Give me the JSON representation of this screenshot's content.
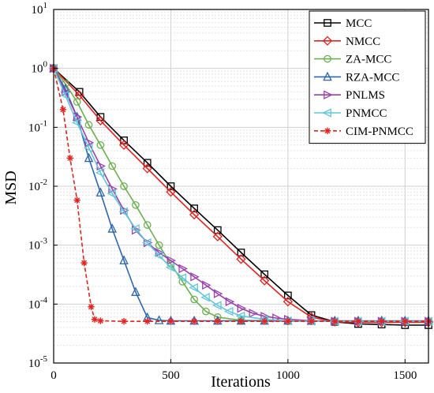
{
  "chart_data": {
    "type": "line",
    "xlabel": "Iterations",
    "ylabel": "MSD",
    "xlim": [
      0,
      1600
    ],
    "ylim": [
      1e-05,
      10
    ],
    "yscale": "log",
    "grid": true,
    "legend_position": "top-right",
    "x_ticks": [
      "0",
      "500",
      "1000",
      "1500"
    ],
    "y_ticks": [
      {
        "base": "10",
        "exp": "1"
      },
      {
        "base": "10",
        "exp": "0"
      },
      {
        "base": "10",
        "exp": "-1"
      },
      {
        "base": "10",
        "exp": "-2"
      },
      {
        "base": "10",
        "exp": "-3"
      },
      {
        "base": "10",
        "exp": "-4"
      },
      {
        "base": "10",
        "exp": "-5"
      }
    ],
    "series": [
      {
        "name": "MCC",
        "color": "#000000",
        "marker": "square",
        "dash": false,
        "x": [
          0,
          110,
          200,
          300,
          400,
          500,
          600,
          700,
          800,
          900,
          1000,
          1100,
          1200,
          1300,
          1400,
          1500,
          1600
        ],
        "y": [
          1.0,
          0.4,
          0.15,
          0.06,
          0.025,
          0.01,
          0.0042,
          0.0018,
          0.00075,
          0.00032,
          0.00014,
          6.5e-05,
          5e-05,
          4.6e-05,
          4.5e-05,
          4.4e-05,
          4.4e-05
        ]
      },
      {
        "name": "NMCC",
        "color": "#e8201e",
        "marker": "diamond",
        "dash": false,
        "x": [
          0,
          110,
          200,
          300,
          400,
          500,
          600,
          700,
          800,
          900,
          1000,
          1100,
          1200,
          1300,
          1400,
          1500,
          1600
        ],
        "y": [
          1.0,
          0.35,
          0.13,
          0.05,
          0.02,
          0.008,
          0.0033,
          0.0014,
          0.00058,
          0.00025,
          0.00011,
          6e-05,
          5e-05,
          4.9e-05,
          4.9e-05,
          4.9e-05,
          4.9e-05
        ]
      },
      {
        "name": "ZA-MCC",
        "color": "#6ab04c",
        "marker": "circle",
        "dash": false,
        "x": [
          0,
          50,
          100,
          150,
          200,
          250,
          300,
          350,
          400,
          450,
          500,
          550,
          600,
          650,
          700,
          800,
          900,
          1000,
          1100,
          1200,
          1300,
          1400,
          1500,
          1600
        ],
        "y": [
          1.0,
          0.55,
          0.27,
          0.11,
          0.05,
          0.022,
          0.01,
          0.0048,
          0.0022,
          0.001,
          0.00048,
          0.00024,
          0.00012,
          7.5e-05,
          6e-05,
          5.3e-05,
          5.2e-05,
          5.1e-05,
          5.1e-05,
          5.1e-05,
          5.1e-05,
          5.1e-05,
          5.1e-05,
          5.1e-05
        ]
      },
      {
        "name": "RZA-MCC",
        "color": "#2b66b1",
        "marker": "triangle-up",
        "dash": false,
        "x": [
          0,
          50,
          100,
          150,
          200,
          250,
          300,
          350,
          400,
          450,
          500,
          600,
          700,
          800,
          900,
          1000,
          1100,
          1200,
          1300,
          1400,
          1500,
          1600
        ],
        "y": [
          1.0,
          0.45,
          0.15,
          0.03,
          0.0078,
          0.0019,
          0.00055,
          0.00016,
          5.9e-05,
          5.3e-05,
          5.2e-05,
          5.2e-05,
          5.2e-05,
          5.2e-05,
          5.2e-05,
          5.2e-05,
          5.2e-05,
          5.2e-05,
          5.2e-05,
          5.2e-05,
          5.2e-05,
          5.2e-05
        ]
      },
      {
        "name": "PNLMS",
        "color": "#9b3fb0",
        "marker": "triangle-right",
        "dash": false,
        "x": [
          0,
          50,
          100,
          150,
          200,
          250,
          300,
          350,
          400,
          450,
          500,
          550,
          600,
          650,
          700,
          750,
          800,
          850,
          900,
          950,
          1000,
          1100,
          1200,
          1300,
          1400,
          1500,
          1600
        ],
        "y": [
          1.0,
          0.4,
          0.15,
          0.055,
          0.022,
          0.009,
          0.0039,
          0.0018,
          0.0011,
          0.00075,
          0.00055,
          0.0004,
          0.00029,
          0.00021,
          0.00015,
          0.00011,
          8.5e-05,
          7e-05,
          6.2e-05,
          5.8e-05,
          5.5e-05,
          5.2e-05,
          5.1e-05,
          5.1e-05,
          5.1e-05,
          5.1e-05,
          5.1e-05
        ]
      },
      {
        "name": "PNMCC",
        "color": "#5fc7d9",
        "marker": "triangle-left",
        "dash": false,
        "x": [
          0,
          50,
          100,
          150,
          200,
          250,
          300,
          350,
          400,
          450,
          500,
          550,
          600,
          650,
          700,
          750,
          800,
          900,
          1000,
          1100,
          1200,
          1300,
          1400,
          1500,
          1600
        ],
        "y": [
          1.0,
          0.35,
          0.12,
          0.045,
          0.017,
          0.0075,
          0.0037,
          0.0019,
          0.0011,
          0.00067,
          0.00042,
          0.00028,
          0.00019,
          0.00013,
          9.5e-05,
          7.5e-05,
          6.3e-05,
          5.5e-05,
          5.2e-05,
          5.1e-05,
          5.1e-05,
          5.1e-05,
          5.1e-05,
          5.1e-05,
          5.1e-05
        ]
      },
      {
        "name": "CIM-PNMCC",
        "color": "#e8201e",
        "marker": "star",
        "dash": true,
        "x": [
          0,
          40,
          70,
          100,
          130,
          160,
          175,
          200,
          300,
          400,
          500,
          600,
          700,
          800,
          900,
          1000,
          1100,
          1200,
          1300,
          1400,
          1500,
          1600
        ],
        "y": [
          1.0,
          0.2,
          0.03,
          0.0058,
          0.0005,
          9e-05,
          5.5e-05,
          5.2e-05,
          5.1e-05,
          5.1e-05,
          5.1e-05,
          5.1e-05,
          5.1e-05,
          5.1e-05,
          5.1e-05,
          5.1e-05,
          5.1e-05,
          5.1e-05,
          5.1e-05,
          5.1e-05,
          5.1e-05,
          5.1e-05
        ]
      }
    ]
  }
}
